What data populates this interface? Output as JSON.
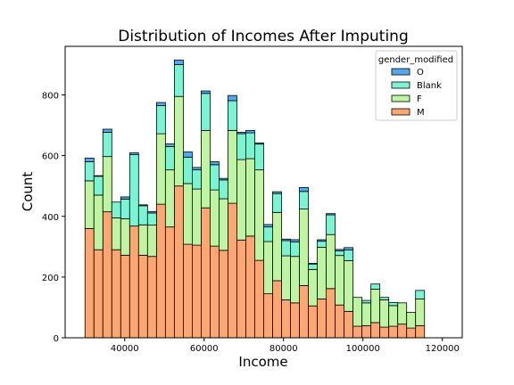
{
  "chart_data": {
    "type": "bar",
    "stacked": true,
    "title": "Distribution of Incomes After Imputing",
    "xlabel": "Income",
    "ylabel": "Count",
    "xlim": [
      25000,
      125000
    ],
    "ylim": [
      0,
      960
    ],
    "xticks": [
      40000,
      60000,
      80000,
      100000,
      120000
    ],
    "yticks": [
      0,
      200,
      400,
      600,
      800
    ],
    "bin_start": 30000,
    "bin_width": 2250,
    "legend": {
      "title": "gender_modified",
      "position": "top-right",
      "entries": [
        "O",
        "Blank",
        "F",
        "M"
      ]
    },
    "series": [
      {
        "name": "M",
        "color": "#f9a873",
        "values": [
          360,
          290,
          415,
          290,
          272,
          368,
          272,
          268,
          440,
          365,
          500,
          308,
          305,
          428,
          302,
          288,
          443,
          322,
          335,
          255,
          145,
          188,
          125,
          115,
          172,
          105,
          128,
          162,
          108,
          87,
          38,
          40,
          50,
          35,
          38,
          45,
          32,
          40
        ]
      },
      {
        "name": "F",
        "color": "#c1f3a4",
        "values": [
          157,
          180,
          182,
          105,
          120,
          0,
          100,
          103,
          232,
          188,
          295,
          200,
          185,
          255,
          185,
          170,
          240,
          265,
          255,
          298,
          172,
          225,
          145,
          153,
          252,
          120,
          170,
          178,
          163,
          167,
          95,
          75,
          110,
          90,
          68,
          70,
          52,
          88
        ]
      },
      {
        "name": "Blank",
        "color": "#7ef3d4",
        "values": [
          63,
          62,
          80,
          52,
          65,
          235,
          63,
          40,
          93,
          77,
          105,
          87,
          63,
          122,
          83,
          62,
          98,
          85,
          85,
          85,
          48,
          62,
          50,
          48,
          58,
          18,
          20,
          65,
          15,
          35,
          0,
          8,
          17,
          8,
          10,
          0,
          0,
          28
        ]
      },
      {
        "name": "O",
        "color": "#56a8ed",
        "values": [
          12,
          2,
          10,
          0,
          7,
          6,
          3,
          5,
          10,
          9,
          15,
          17,
          8,
          8,
          10,
          5,
          17,
          5,
          8,
          4,
          8,
          6,
          5,
          7,
          13,
          2,
          5,
          4,
          5,
          8,
          0,
          0,
          0,
          0,
          0,
          0,
          0,
          0
        ]
      }
    ]
  }
}
